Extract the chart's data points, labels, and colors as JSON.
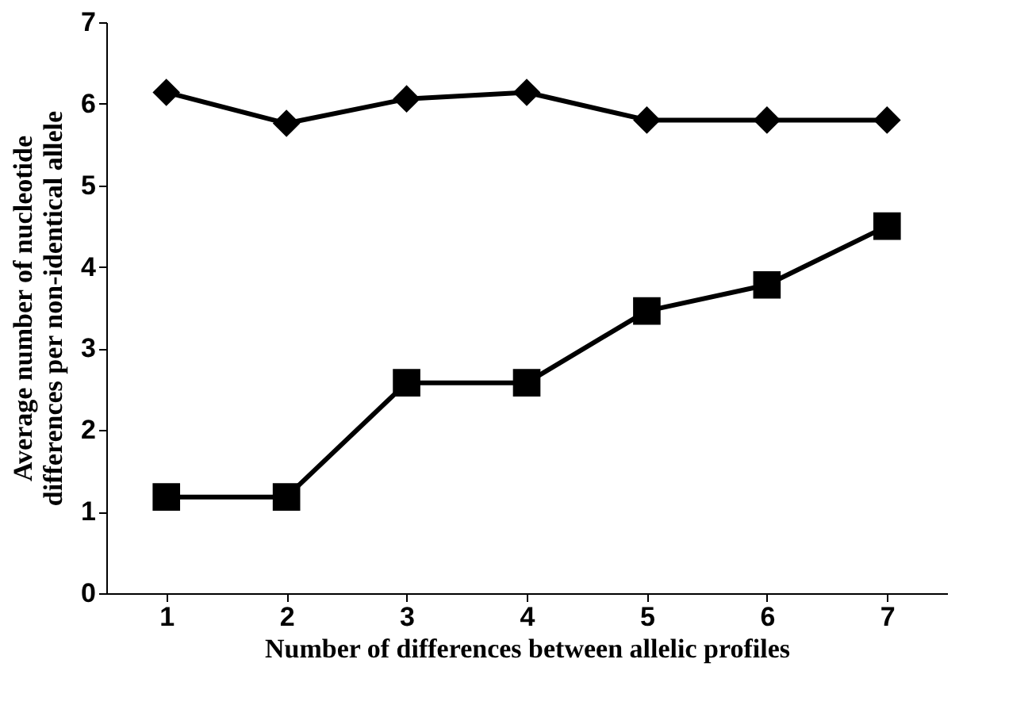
{
  "chart_data": {
    "type": "line",
    "xlabel": "Number of differences between allelic profiles",
    "ylabel": "Average number of nucleotide differences per non-identical allele",
    "categories": [
      "1",
      "2",
      "3",
      "4",
      "5",
      "6",
      "7"
    ],
    "series": [
      {
        "color": "#000000",
        "marker": "diamond",
        "values": [
          6.14,
          5.76,
          6.06,
          6.14,
          5.8,
          5.8,
          5.8
        ]
      },
      {
        "color": "#000000",
        "marker": "square",
        "values": [
          1.18,
          1.18,
          2.58,
          2.58,
          3.46,
          3.78,
          4.5
        ]
      }
    ],
    "ylim": [
      0,
      7
    ],
    "yticks": [
      0,
      1,
      2,
      3,
      4,
      5,
      6,
      7
    ]
  }
}
